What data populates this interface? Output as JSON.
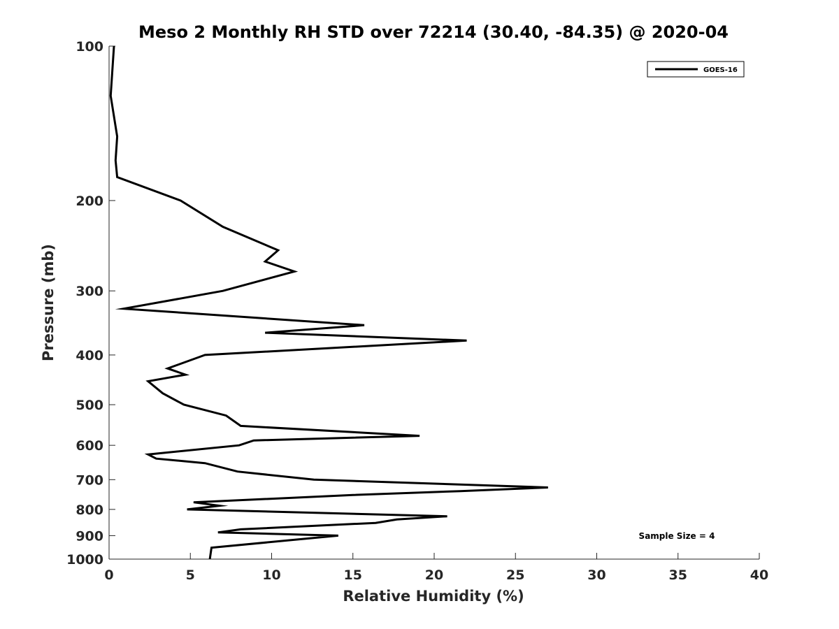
{
  "chart_data": {
    "type": "line",
    "title": "Meso 2 Monthly RH STD over 72214 (30.40, -84.35) @ 2020-04",
    "xlabel": "Relative Humidity (%)",
    "ylabel": "Pressure (mb)",
    "xlim": [
      0,
      40
    ],
    "ylim": [
      100,
      1000
    ],
    "y_scale": "log",
    "y_reversed": true,
    "xticks": [
      0,
      5,
      10,
      15,
      20,
      25,
      30,
      35,
      40
    ],
    "yticks": [
      100,
      200,
      300,
      400,
      500,
      600,
      700,
      800,
      900,
      1000
    ],
    "grid": false,
    "legend_position": "top-right",
    "annotation": "Sample Size = 4",
    "series": [
      {
        "name": "GOES-16",
        "color": "#000000",
        "points": [
          [
            0.3,
            100
          ],
          [
            0.1,
            125
          ],
          [
            0.5,
            150
          ],
          [
            0.4,
            167
          ],
          [
            0.5,
            180
          ],
          [
            4.4,
            200
          ],
          [
            7.0,
            225
          ],
          [
            10.4,
            250
          ],
          [
            9.6,
            263
          ],
          [
            11.4,
            275
          ],
          [
            7.0,
            300
          ],
          [
            0.9,
            325
          ],
          [
            15.7,
            350
          ],
          [
            9.6,
            362
          ],
          [
            22.0,
            375
          ],
          [
            5.9,
            400
          ],
          [
            3.6,
            425
          ],
          [
            4.7,
            437
          ],
          [
            2.4,
            450
          ],
          [
            3.3,
            475
          ],
          [
            4.6,
            500
          ],
          [
            7.2,
            525
          ],
          [
            8.1,
            550
          ],
          [
            19.1,
            575
          ],
          [
            8.9,
            587
          ],
          [
            8.0,
            600
          ],
          [
            2.4,
            625
          ],
          [
            2.9,
            637
          ],
          [
            5.9,
            650
          ],
          [
            7.9,
            675
          ],
          [
            12.6,
            700
          ],
          [
            27.0,
            725
          ],
          [
            21.6,
            737
          ],
          [
            15.0,
            750
          ],
          [
            5.2,
            775
          ],
          [
            6.8,
            787
          ],
          [
            4.8,
            800
          ],
          [
            20.8,
            825
          ],
          [
            17.7,
            837
          ],
          [
            16.4,
            850
          ],
          [
            8.1,
            875
          ],
          [
            6.7,
            887
          ],
          [
            14.1,
            900
          ],
          [
            6.3,
            950
          ],
          [
            6.2,
            1000
          ]
        ]
      }
    ]
  }
}
